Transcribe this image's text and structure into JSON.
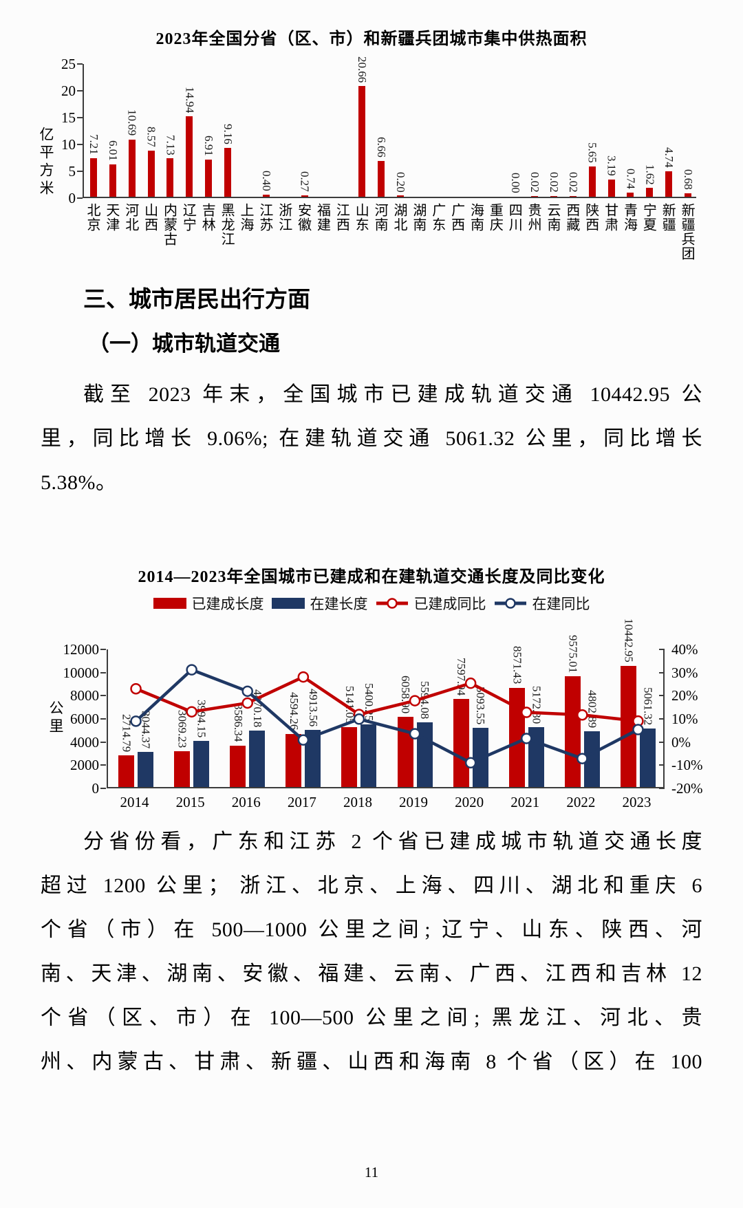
{
  "section": {
    "heading": "三、城市居民出行方面",
    "subheading": "（一）城市轨道交通"
  },
  "paragraphs": {
    "p1": [
      "截至 2023 年末，全国城市已建成轨道交通 10442.95 公",
      "里，同比增长 9.06%; 在建轨道交通 5061.32 公里，同比增长",
      "5.38%。"
    ],
    "p2": [
      "分省份看，广东和江苏 2 个省已建成城市轨道交通长度",
      "超过 1200 公里； 浙江、北京、上海、四川、湖北和重庆 6",
      "个省（市）在 500—1000 公里之间; 辽宁、山东、陕西、河",
      "南、天津、湖南、安徽、福建、云南、广西、江西和吉林 12",
      "个省（区、市）在 100—500 公里之间; 黑龙江、河北、贵",
      "州、内蒙古、甘肃、新疆、山西和海南 8 个省（区）在 100"
    ]
  },
  "page_number": "11",
  "colors": {
    "red": "#c00000",
    "navy": "#1f3864",
    "axis": "#3c3c3c"
  },
  "chart_data": [
    {
      "type": "bar",
      "title": "2023年全国分省（区、市）和新疆兵团城市集中供热面积",
      "ylabel": "亿平方米",
      "ylim": [
        0,
        25
      ],
      "yticks": [
        25,
        20,
        15,
        10,
        5,
        0
      ],
      "bar_color": "#c00000",
      "grid": false,
      "categories": [
        "北京",
        "天津",
        "河北",
        "山西",
        "内蒙古",
        "辽宁",
        "吉林",
        "黑龙江",
        "上海",
        "江苏",
        "浙江",
        "安徽",
        "福建",
        "江西",
        "山东",
        "河南",
        "湖北",
        "湖南",
        "广东",
        "广西",
        "海南",
        "重庆",
        "四川",
        "贵州",
        "云南",
        "西藏",
        "陕西",
        "甘肃",
        "青海",
        "宁夏",
        "新疆",
        "新疆兵团"
      ],
      "values": [
        7.21,
        6.01,
        10.69,
        8.57,
        7.13,
        14.94,
        6.91,
        9.16,
        0,
        0.4,
        0,
        0.27,
        0,
        0,
        20.66,
        6.66,
        0.2,
        0,
        0,
        0,
        0,
        0,
        0.0,
        0.02,
        0.02,
        0.02,
        5.65,
        3.19,
        0.74,
        1.62,
        4.74,
        0.68
      ],
      "labels": [
        "7.21",
        "6.01",
        "10.69",
        "8.57",
        "7.13",
        "14.94",
        "6.91",
        "9.16",
        "",
        "0.40",
        "",
        "0.27",
        "",
        "",
        "20.66",
        "6.66",
        "0.20",
        "",
        "",
        "",
        "",
        "",
        "0.00",
        "0.02",
        "0.02",
        "0.02",
        "5.65",
        "3.19",
        "0.74",
        "1.62",
        "4.74",
        "0.68"
      ]
    },
    {
      "type": "bar+line",
      "title": "2014—2023年全国城市已建成和在建轨道交通长度及同比变化",
      "ylabel_left": "公里",
      "ylim_left": [
        0,
        12000
      ],
      "yticks_left": [
        12000,
        10000,
        8000,
        6000,
        4000,
        2000,
        0
      ],
      "ylim_right": [
        -20,
        40
      ],
      "yticks_right": [
        "40%",
        "30%",
        "20%",
        "10%",
        "0%",
        "-10%",
        "-20%"
      ],
      "grid": false,
      "legend_position": "top",
      "categories": [
        "2014",
        "2015",
        "2016",
        "2017",
        "2018",
        "2019",
        "2020",
        "2021",
        "2022",
        "2023"
      ],
      "series": [
        {
          "name": "已建成长度",
          "type": "bar",
          "color": "#c00000",
          "values": [
            2714.79,
            3069.23,
            3586.34,
            4594.26,
            5141.05,
            6058.9,
            7597.94,
            8571.43,
            9575.01,
            10442.95
          ],
          "labels": [
            "2714.79",
            "3069.23",
            "3586.34",
            "4594.26",
            "5141.05",
            "6058.90",
            "7597.94",
            "8571.43",
            "9575.01",
            "10442.95"
          ]
        },
        {
          "name": "在建长度",
          "type": "bar",
          "color": "#1f3864",
          "values": [
            3044.37,
            3994.15,
            4870.18,
            4913.56,
            5400.25,
            5594.08,
            5093.55,
            5172.3,
            4802.89,
            5061.32
          ],
          "labels": [
            "3044.37",
            "3994.15",
            "4870.18",
            "4913.56",
            "5400.25",
            "5594.08",
            "5093.55",
            "5172.30",
            "4802.89",
            "5061.32"
          ]
        },
        {
          "name": "已建成同比",
          "type": "line",
          "color": "#c00000",
          "values_pct": [
            23.0,
            13.06,
            16.85,
            28.1,
            11.9,
            17.85,
            25.4,
            12.81,
            11.71,
            9.06
          ]
        },
        {
          "name": "在建同比",
          "type": "line",
          "color": "#1f3864",
          "values_pct": [
            9.0,
            31.2,
            21.93,
            0.89,
            9.91,
            3.59,
            -8.95,
            1.55,
            -7.14,
            5.38
          ]
        }
      ]
    }
  ]
}
